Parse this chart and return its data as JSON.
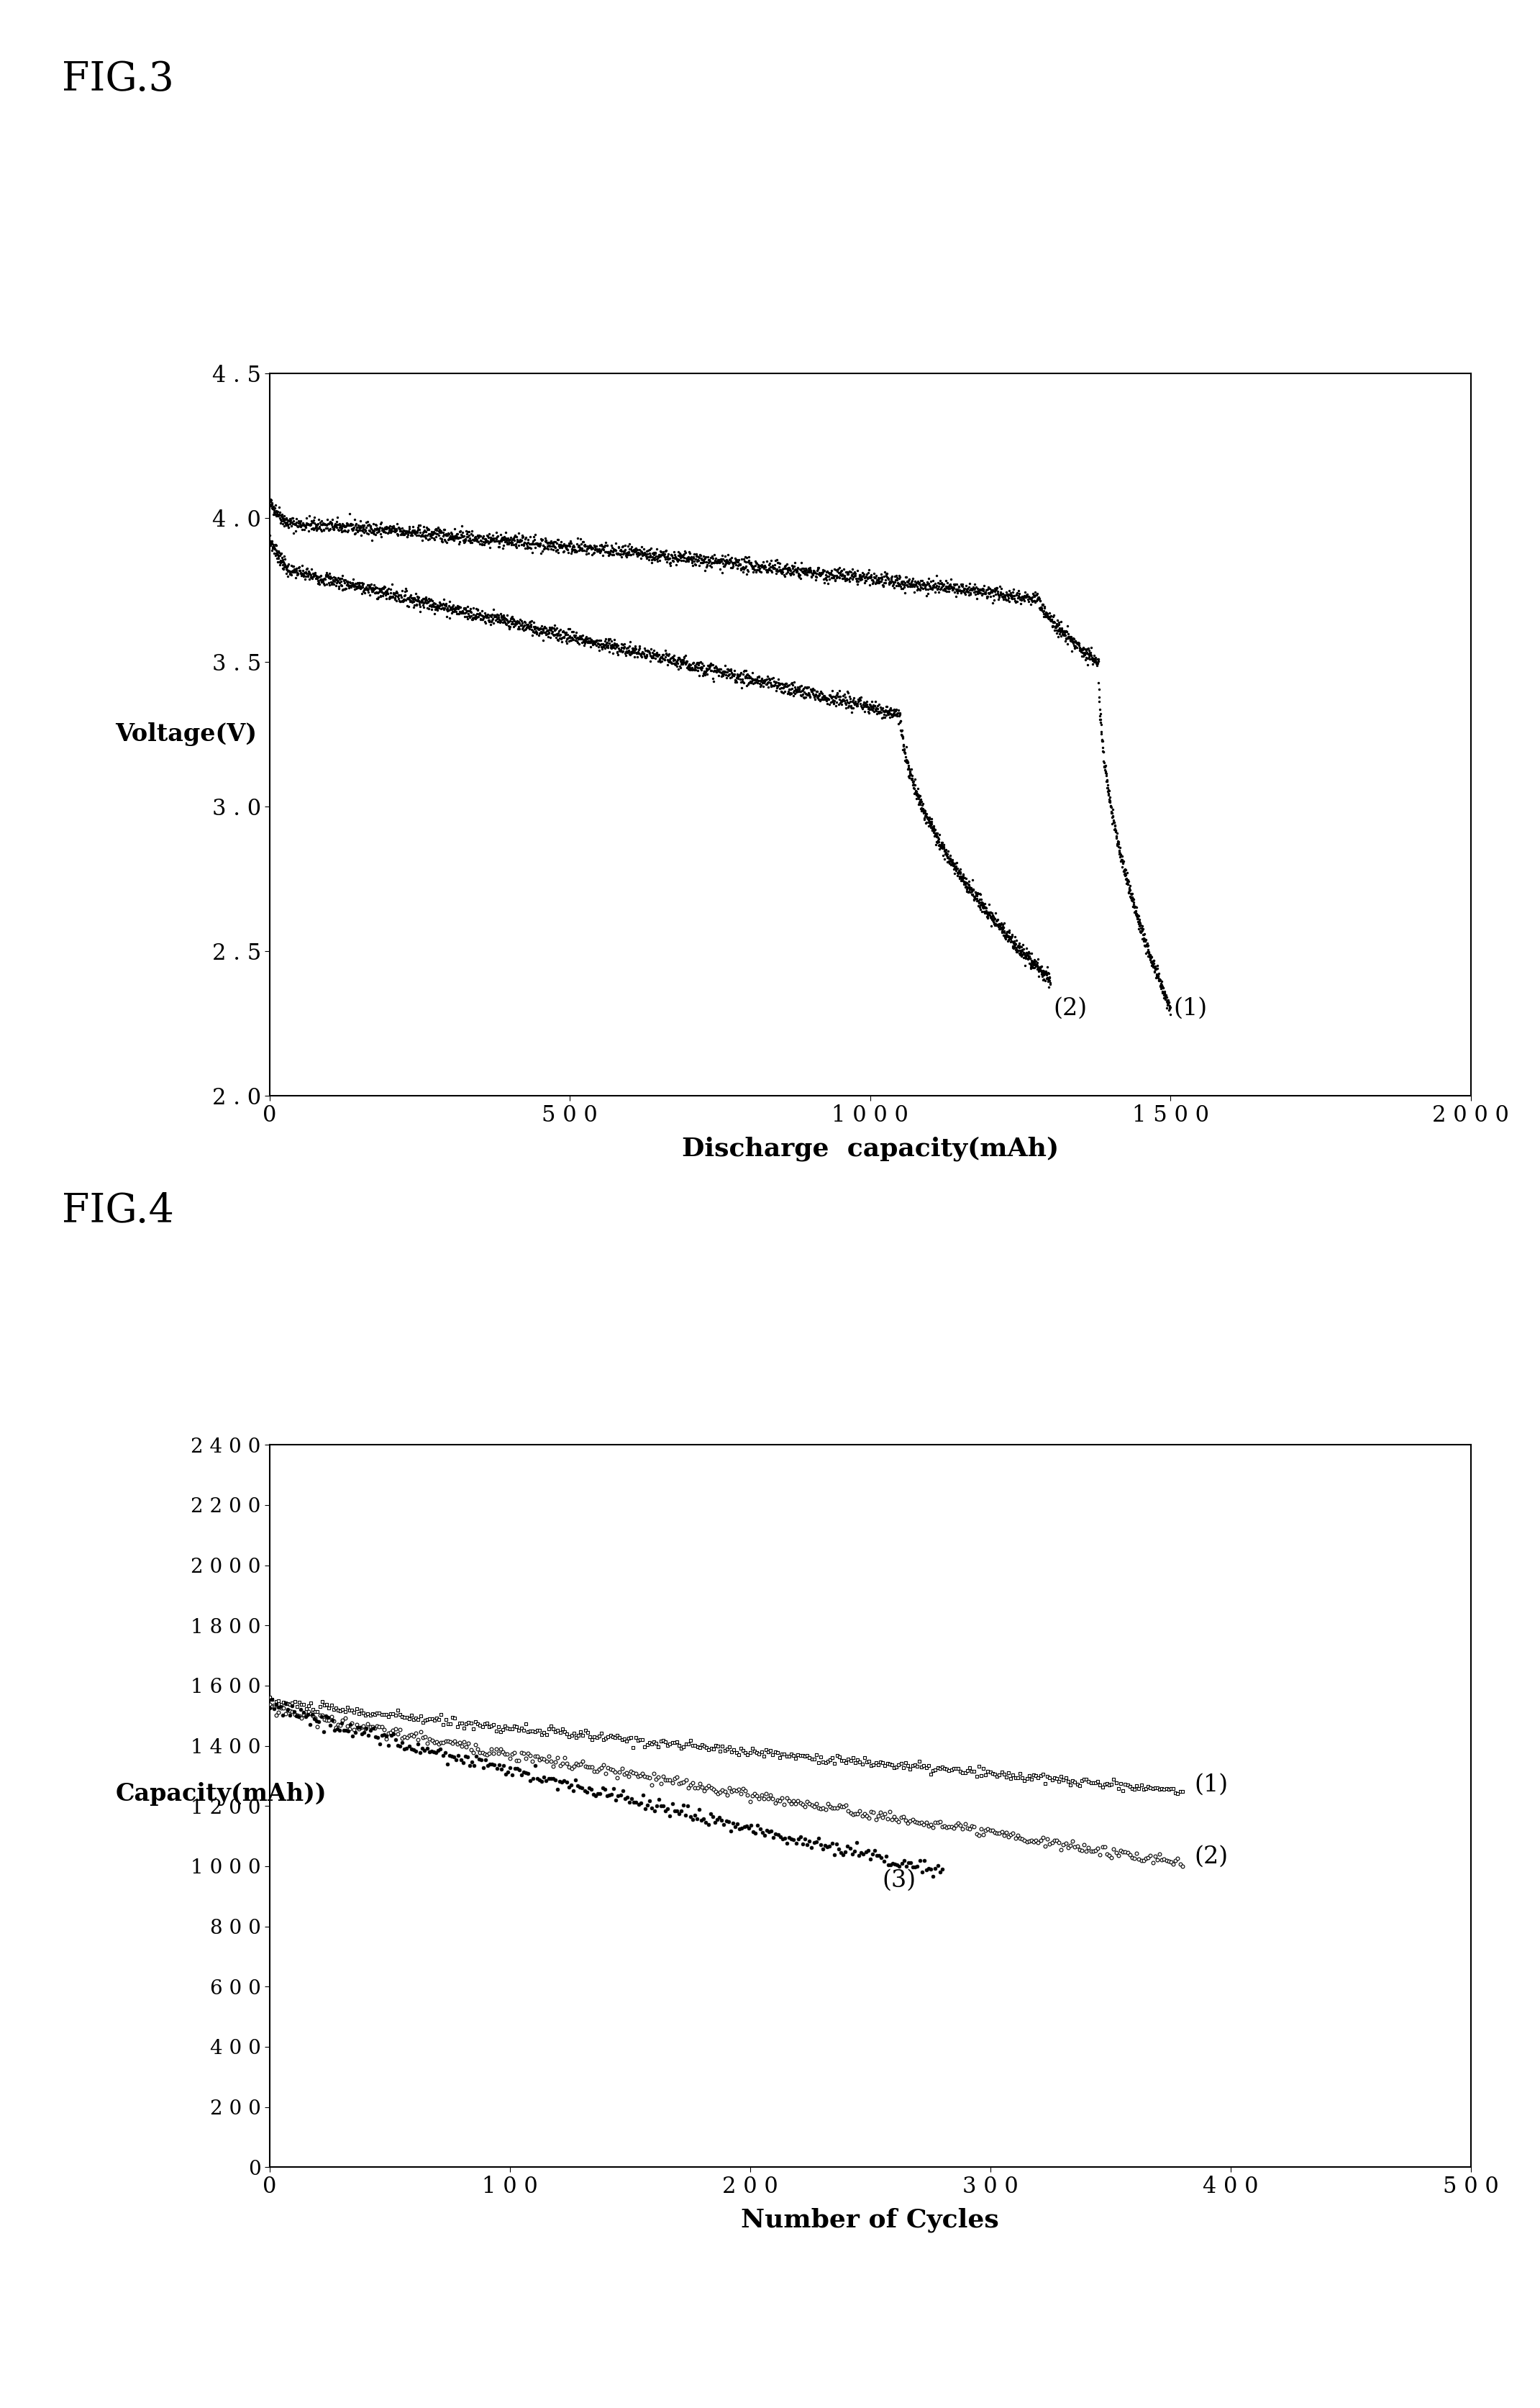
{
  "fig3": {
    "title": "FIG.3",
    "xlabel": "Discharge  capacity(mAh)",
    "ylabel": "Voltage(V)",
    "xlim": [
      0,
      2000
    ],
    "ylim": [
      2.0,
      4.5
    ],
    "xticks": [
      0,
      500,
      1000,
      1500,
      2000
    ],
    "xtick_labels": [
      "0",
      "5 0 0",
      "1 0 0 0",
      "1 5 0 0",
      "2 0 0 0"
    ],
    "yticks": [
      2.0,
      2.5,
      3.0,
      3.5,
      4.0,
      4.5
    ],
    "ytick_labels": [
      "2 . 0",
      "2 . 5",
      "3 . 0",
      "3 . 5",
      "4 . 0",
      "4 . 5"
    ],
    "curve1_label": "(1)",
    "curve2_label": "(2)"
  },
  "fig4": {
    "title": "FIG.4",
    "xlabel": "Number of Cycles",
    "ylabel": "Capacity(mAh))",
    "xlim": [
      0,
      500
    ],
    "ylim": [
      0,
      2400
    ],
    "xticks": [
      0,
      100,
      200,
      300,
      400,
      500
    ],
    "xtick_labels": [
      "0",
      "1 0 0",
      "2 0 0",
      "3 0 0",
      "4 0 0",
      "5 0 0"
    ],
    "yticks": [
      0,
      200,
      400,
      600,
      800,
      1000,
      1200,
      1400,
      1600,
      1800,
      2000,
      2200,
      2400
    ],
    "ytick_labels": [
      "0",
      "2 0 0",
      "4 0 0",
      "6 0 0",
      "8 0 0",
      "1 0 0 0",
      "1 2 0 0",
      "1 4 0 0",
      "1 6 0 0",
      "1 8 0 0",
      "2 0 0 0",
      "2 2 0 0",
      "2 4 0 0"
    ],
    "curve1_label": "(1)",
    "curve2_label": "(2)",
    "curve3_label": "(3)"
  },
  "background_color": "#ffffff",
  "text_color": "#000000",
  "fig_label_fontsize": 40,
  "axis_label_fontsize": 24,
  "tick_fontsize": 22,
  "xlabel_fontsize": 26
}
